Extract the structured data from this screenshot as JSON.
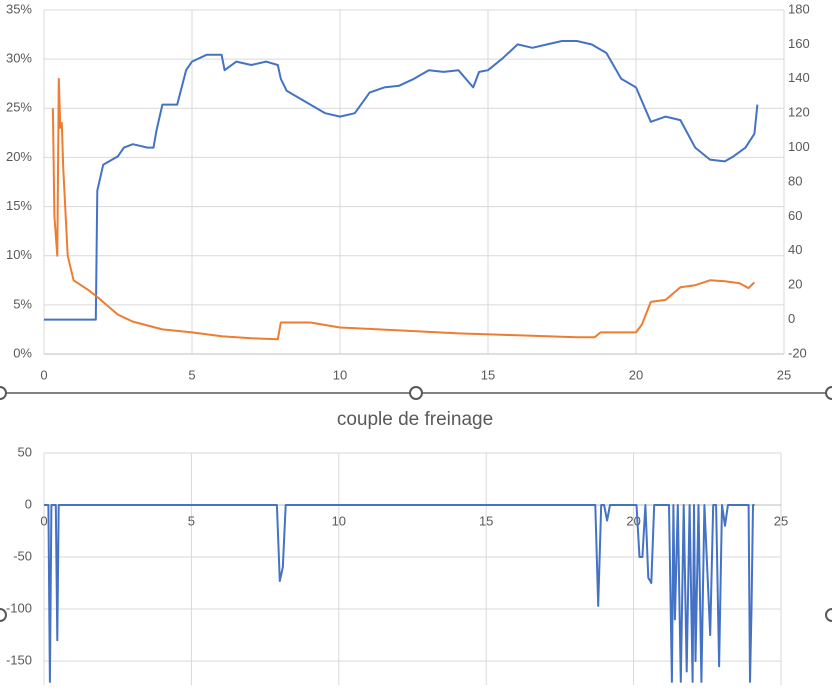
{
  "chart_data": [
    {
      "type": "line",
      "grid": true,
      "xlim": [
        0,
        25
      ],
      "xticks": [
        0,
        5,
        10,
        15,
        20,
        25
      ],
      "ylim": [
        0,
        35
      ],
      "yticks": [
        {
          "value": 0,
          "label": "0%"
        },
        {
          "value": 5,
          "label": "5%"
        },
        {
          "value": 10,
          "label": "10%"
        },
        {
          "value": 15,
          "label": "15%"
        },
        {
          "value": 20,
          "label": "20%"
        },
        {
          "value": 25,
          "label": "25%"
        },
        {
          "value": 30,
          "label": "30%"
        },
        {
          "value": 35,
          "label": "35%"
        }
      ],
      "y2lim": [
        -20,
        180
      ],
      "y2ticks": [
        -20,
        0,
        20,
        40,
        60,
        80,
        100,
        120,
        140,
        160,
        180
      ],
      "series": [
        {
          "color": "#4472c4",
          "axis": "y2",
          "x": [
            0,
            1.75,
            1.8,
            2,
            2.5,
            2.7,
            3,
            3.5,
            3.7,
            3.8,
            4,
            4.5,
            4.8,
            5,
            5.5,
            6,
            6.1,
            6.5,
            7,
            7.5,
            7.9,
            8,
            8.2,
            8.5,
            9,
            9.5,
            10,
            10.5,
            11,
            11.5,
            12,
            12.5,
            13,
            13.5,
            14,
            14.5,
            14.7,
            15,
            15.5,
            16,
            16.5,
            17,
            17.5,
            18,
            18.5,
            19,
            19.5,
            20,
            20.5,
            21,
            21.5,
            22,
            22.5,
            23,
            23.3,
            23.7,
            24,
            24.1
          ],
          "values": [
            0,
            0,
            75,
            90,
            95,
            100,
            102,
            100,
            100,
            110,
            125,
            125,
            145,
            150,
            154,
            154,
            145,
            150,
            148,
            150,
            148,
            140,
            133,
            130,
            125,
            120,
            118,
            120,
            132,
            135,
            136,
            140,
            145,
            144,
            145,
            135,
            144,
            145,
            152,
            160,
            158,
            160,
            162,
            162,
            160,
            155,
            140,
            135,
            115,
            118,
            116,
            100,
            93,
            92,
            95,
            100,
            108,
            125
          ]
        },
        {
          "color": "#ed7d31",
          "x": [
            0.3,
            0.35,
            0.45,
            0.5,
            0.55,
            0.6,
            0.65,
            0.8,
            1,
            1.5,
            1.8,
            2.5,
            3,
            4,
            5,
            6,
            7,
            7.9,
            8,
            9,
            10,
            12,
            14,
            16,
            18,
            18.6,
            18.8,
            20,
            20.2,
            20.5,
            21,
            21.5,
            22,
            22.5,
            23,
            23.5,
            23.8,
            24
          ],
          "values": [
            25,
            14,
            10,
            28,
            23,
            23.5,
            19,
            10,
            7.5,
            6.5,
            5.8,
            4,
            3.3,
            2.5,
            2.2,
            1.8,
            1.6,
            1.5,
            3.2,
            3.2,
            2.7,
            2.4,
            2.1,
            1.9,
            1.7,
            1.7,
            2.2,
            2.2,
            3,
            5.3,
            5.5,
            6.8,
            7,
            7.5,
            7.4,
            7.2,
            6.7,
            7.3
          ]
        }
      ]
    },
    {
      "type": "line",
      "title": "couple de freinage",
      "grid": true,
      "xlim": [
        0,
        25
      ],
      "xticks": [
        0,
        5,
        10,
        15,
        20,
        25
      ],
      "ylim": [
        -173,
        50
      ],
      "yticks": [
        -150,
        -100,
        -50,
        0,
        50
      ],
      "series": [
        {
          "color": "#4472c4",
          "x": [
            0,
            0.15,
            0.2,
            0.25,
            0.4,
            0.45,
            0.5,
            7.9,
            8,
            8.1,
            8.2,
            18.7,
            18.8,
            18.9,
            19,
            19.1,
            19.2,
            20.1,
            20.2,
            20.3,
            20.4,
            20.5,
            20.6,
            20.7,
            21.2,
            21.3,
            21.35,
            21.4,
            21.5,
            21.6,
            21.7,
            21.8,
            21.9,
            22,
            22.05,
            22.1,
            22.2,
            22.3,
            22.4,
            22.6,
            22.7,
            22.8,
            22.9,
            23,
            23.1,
            23.2,
            23.9,
            23.95,
            24,
            24.05,
            24.1
          ],
          "values": [
            0,
            0,
            -170,
            0,
            0,
            -130,
            0,
            0,
            -73,
            -60,
            0,
            0,
            -97,
            0,
            0,
            -15,
            0,
            0,
            -50,
            -50,
            0,
            -70,
            -75,
            0,
            0,
            -170,
            0,
            -110,
            0,
            -170,
            0,
            -160,
            0,
            -170,
            0,
            -150,
            0,
            -170,
            0,
            -125,
            0,
            0,
            -155,
            0,
            -20,
            0,
            0,
            -170,
            -100,
            0,
            0
          ]
        }
      ]
    }
  ]
}
